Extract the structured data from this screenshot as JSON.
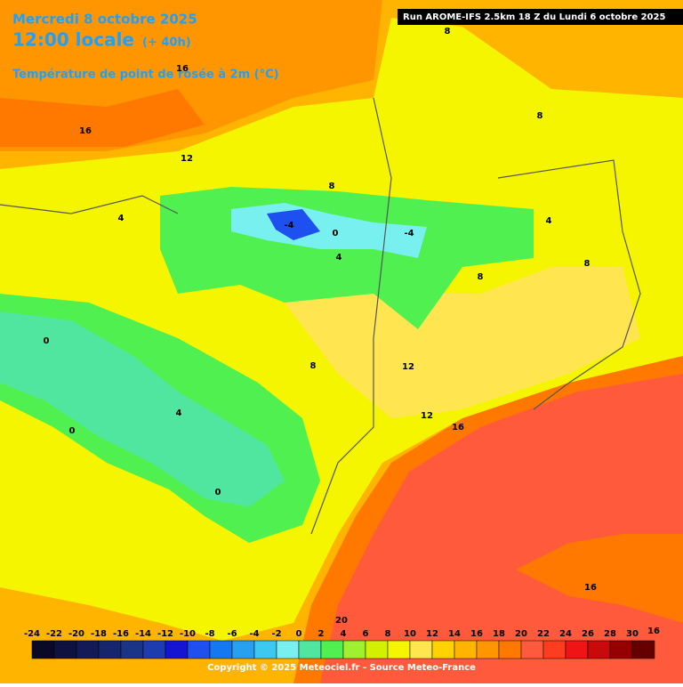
{
  "header": {
    "date": "Mercredi 8 octobre 2025",
    "time": "12:00 locale",
    "lead": "(+ 40h)",
    "title": "Température de point de rosée à 2m (°C)",
    "run": "Run AROME-IFS 2.5km 18 Z du Lundi 6 octobre 2025"
  },
  "map_labels": [
    16,
    16,
    12,
    8,
    8,
    8,
    4,
    -4,
    0,
    -4,
    4,
    8,
    4,
    8,
    0,
    8,
    12,
    4,
    0,
    12,
    16,
    0,
    20,
    16,
    16
  ],
  "colorbar": {
    "ticks": [
      -24,
      -22,
      -20,
      -18,
      -16,
      -14,
      -12,
      -10,
      -8,
      -6,
      -4,
      -2,
      0,
      2,
      4,
      6,
      8,
      10,
      12,
      14,
      16,
      18,
      20,
      22,
      24,
      26,
      28,
      30
    ],
    "colors": [
      "#0a0a28",
      "#0f123e",
      "#131a56",
      "#17266c",
      "#1a3488",
      "#1c3cb0",
      "#1414d2",
      "#1e50f0",
      "#1478f0",
      "#28a0f0",
      "#3cc8f0",
      "#78f0f0",
      "#50e6a0",
      "#50f050",
      "#a0f032",
      "#d2f000",
      "#f5f500",
      "#ffe650",
      "#ffd200",
      "#ffb400",
      "#ff9600",
      "#ff7800",
      "#ff5a3c",
      "#ff3c1e",
      "#f01414",
      "#c80a0a",
      "#960000",
      "#640000"
    ]
  },
  "footer": {
    "copyright": "Copyright © 2025 Meteociel.fr - Source Meteo-France"
  }
}
